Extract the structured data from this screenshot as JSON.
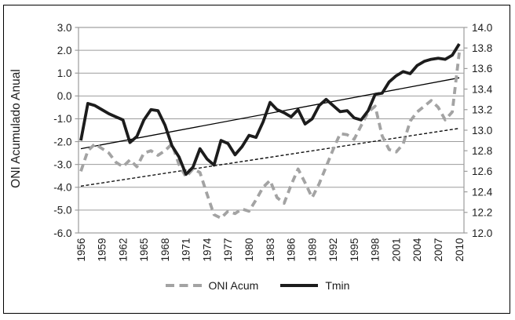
{
  "figure": {
    "kind": "line chart, dual y-axes, framed figure",
    "background": "#ffffff",
    "frame_border_color": "#000000"
  },
  "colors": {
    "grid": "#9c9c9c",
    "axis_text": "#1c1c1c",
    "oni_line": "#a3a3a3",
    "tmin_line": "#1c1c1c",
    "trend_line": "#000000"
  },
  "chart_data": {
    "type": "line",
    "grid": "horizontal gridlines at every 1.0 of left axis",
    "legend_position": "bottom center",
    "x": [
      1956,
      1957,
      1958,
      1959,
      1960,
      1961,
      1962,
      1963,
      1964,
      1965,
      1966,
      1967,
      1968,
      1969,
      1970,
      1971,
      1972,
      1973,
      1974,
      1975,
      1976,
      1977,
      1978,
      1979,
      1980,
      1981,
      1982,
      1983,
      1984,
      1985,
      1986,
      1987,
      1988,
      1989,
      1990,
      1991,
      1992,
      1993,
      1994,
      1995,
      1996,
      1997,
      1998,
      1999,
      2000,
      2001,
      2002,
      2003,
      2004,
      2005,
      2006,
      2007,
      2008,
      2009,
      2010
    ],
    "x_axis": {
      "tick_labels": [
        "1956",
        "1959",
        "1962",
        "1965",
        "1968",
        "1971",
        "1974",
        "1977",
        "1980",
        "1983",
        "1986",
        "1989",
        "1992",
        "1995",
        "1998",
        "2001",
        "2004",
        "2007",
        "2010"
      ],
      "label_rotation_deg": -90
    },
    "left_axis": {
      "title": "ONI Acumulado Anual",
      "min": -6.0,
      "max": 3.0,
      "step": 1.0,
      "tick_labels": [
        "3.0",
        "2.0",
        "1.0",
        "0.0",
        "-1.0",
        "-2.0",
        "-3.0",
        "-4.0",
        "-5.0",
        "-6.0"
      ]
    },
    "right_axis": {
      "min": 12.0,
      "max": 14.0,
      "step": 0.2,
      "tick_labels": [
        "14.0",
        "13.8",
        "13.6",
        "13.4",
        "13.2",
        "13.0",
        "12.8",
        "12.6",
        "12.4",
        "12.2",
        "12.0"
      ]
    },
    "series": [
      {
        "name": "ONI Acum",
        "axis": "left",
        "style": "dashed",
        "color": "#a3a3a3",
        "values": [
          -3.3,
          -2.4,
          -2.1,
          -2.3,
          -2.5,
          -2.9,
          -3.1,
          -2.8,
          -3.1,
          -2.5,
          -2.4,
          -2.6,
          -2.4,
          -2.1,
          -3.0,
          -3.55,
          -3.2,
          -3.35,
          -4.3,
          -5.2,
          -5.35,
          -5.05,
          -5.15,
          -4.95,
          -5.05,
          -4.55,
          -4.0,
          -3.7,
          -4.45,
          -4.7,
          -3.9,
          -3.2,
          -3.8,
          -4.45,
          -3.85,
          -3.1,
          -2.35,
          -1.65,
          -1.7,
          -1.9,
          -1.3,
          -0.7,
          -0.45,
          -1.75,
          -2.35,
          -2.45,
          -2.1,
          -1.1,
          -0.7,
          -0.45,
          -0.2,
          -0.5,
          -1.05,
          -0.7,
          1.9
        ]
      },
      {
        "name": "Tmin",
        "axis": "right",
        "style": "solid",
        "color": "#1c1c1c",
        "values": [
          12.9,
          13.26,
          13.24,
          13.2,
          13.16,
          13.13,
          13.1,
          12.88,
          12.94,
          13.1,
          13.2,
          13.19,
          13.05,
          12.85,
          12.74,
          12.57,
          12.64,
          12.82,
          12.72,
          12.66,
          12.9,
          12.87,
          12.76,
          12.84,
          12.95,
          12.93,
          13.08,
          13.27,
          13.2,
          13.17,
          13.13,
          13.2,
          13.06,
          13.11,
          13.24,
          13.3,
          13.24,
          13.18,
          13.19,
          13.12,
          13.1,
          13.19,
          13.35,
          13.36,
          13.47,
          13.53,
          13.57,
          13.55,
          13.63,
          13.67,
          13.69,
          13.7,
          13.69,
          13.73,
          13.84
        ]
      }
    ],
    "trendlines": [
      {
        "for_series": "ONI Acum",
        "axis": "left",
        "style": "dotted",
        "start_value": -3.95,
        "end_value": -1.42,
        "color": "#000000"
      },
      {
        "for_series": "Tmin",
        "axis": "right",
        "style": "solid",
        "start_value": 12.82,
        "end_value": 13.51,
        "color": "#000000"
      }
    ]
  }
}
